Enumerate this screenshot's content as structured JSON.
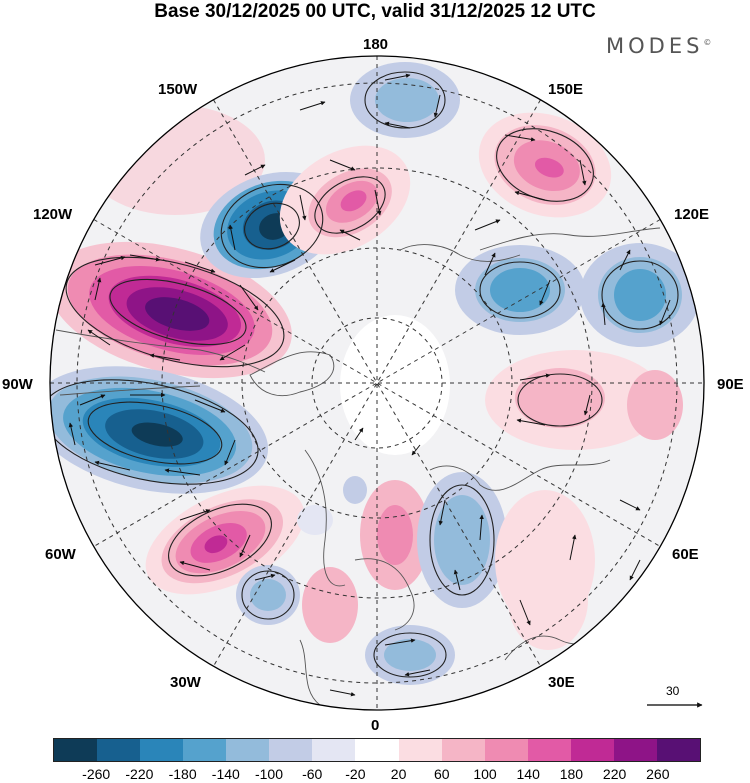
{
  "title": "Base 30/12/2025 00 UTC, valid 31/12/2025 12 UTC",
  "brand": "MODES",
  "brand_mark": "©",
  "longitudes": {
    "top": "180",
    "top_left": "150W",
    "top_right": "150E",
    "upper_left": "120W",
    "upper_right": "120E",
    "left": "90W",
    "right": "90E",
    "lower_left": "60W",
    "lower_right": "60E",
    "bottom_left": "30W",
    "bottom_right": "30E",
    "bottom": "0"
  },
  "vector_scale": {
    "label": "30"
  },
  "colorbar": {
    "colors": [
      "#0e3b57",
      "#17608f",
      "#2a85b9",
      "#55a2cd",
      "#93bbdb",
      "#c2cce6",
      "#e4e6f3",
      "#ffffff",
      "#fbdde2",
      "#f5b5c6",
      "#ef8bb2",
      "#e25aa6",
      "#c02a95",
      "#8e1487",
      "#581074"
    ],
    "ticks": [
      "-260",
      "-220",
      "-180",
      "-140",
      "-100",
      "-60",
      "-20",
      "20",
      "60",
      "100",
      "140",
      "180",
      "220",
      "260"
    ]
  }
}
